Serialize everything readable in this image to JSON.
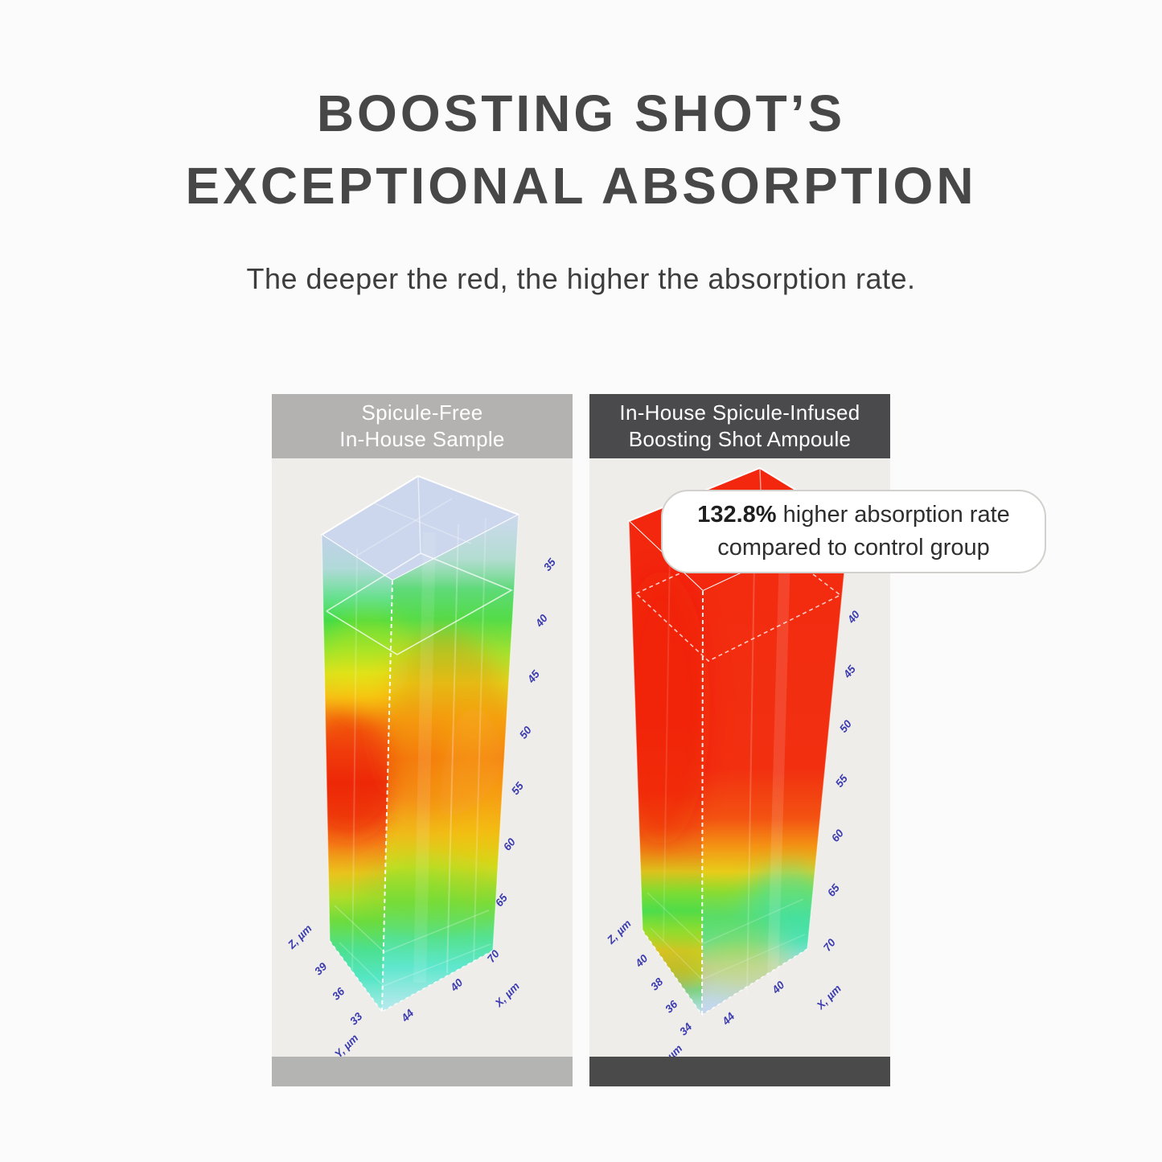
{
  "title": {
    "line1": "BOOSTING SHOT’S",
    "line2": "EXCEPTIONAL ABSORPTION"
  },
  "subtitle": "The deeper the red, the higher the absorption rate.",
  "callout": {
    "value": "132.8%",
    "line1_rest": " higher absorption rate",
    "line2": "compared to control group"
  },
  "colors": {
    "page_bg": "#fbfbfb",
    "title": "#474747",
    "subtitle": "#3d3d3d",
    "header_left_bg": "#b3b2b0",
    "header_right_bg": "#4a4a4c",
    "header_text": "#ffffff",
    "panel_bg": "#efede9",
    "footer_left": "#b4b4b3",
    "footer_right": "#4a4a4a",
    "axis_text": "#3b3bb0",
    "callout_bg": "#ffffff",
    "callout_border": "#d2d0cc",
    "callout_text": "#2e2e2e",
    "edge": "#ffffff"
  },
  "chart_data": [
    {
      "id": "control",
      "type": "heatmap",
      "subtype": "3d-voxel-column",
      "panel_title_lines": [
        "Spicule-Free",
        "In-House Sample"
      ],
      "legend_meaning": "deeper red = higher absorption rate",
      "axes": {
        "x_label": "X, µm",
        "y_label": "Y, µm",
        "z_label": "Z, µm"
      },
      "right_edge_ticks": [
        "35",
        "40",
        "45",
        "50",
        "55",
        "60",
        "65",
        "70"
      ],
      "z_ticks": [
        "39",
        "36",
        "33"
      ],
      "bottom_ticks": [
        "44",
        "40"
      ],
      "gradients": {
        "top_face": "rgba(200,212,237,0.9)",
        "left_face": [
          [
            "0.00",
            "rgba(187,204,234,0.85)"
          ],
          [
            "0.07",
            "rgba(166,214,214,0.85)"
          ],
          [
            "0.13",
            "rgba(96,224,140,0.95)"
          ],
          [
            "0.18",
            "#3edc48"
          ],
          [
            "0.24",
            "#8ce434"
          ],
          [
            "0.29",
            "#d8e220"
          ],
          [
            "0.34",
            "#f6c116"
          ],
          [
            "0.39",
            "#f68e12"
          ],
          [
            "0.45",
            "#f35818"
          ],
          [
            "0.52",
            "#ee2e0e"
          ],
          [
            "0.59",
            "#f04a12"
          ],
          [
            "0.65",
            "#f48016"
          ],
          [
            "0.71",
            "#eac41c"
          ],
          [
            "0.76",
            "#b4dc28"
          ],
          [
            "0.81",
            "#6ddc3e"
          ],
          [
            "0.87",
            "#4ce090"
          ],
          [
            "0.93",
            "#55e6c4"
          ],
          [
            "1.00",
            "rgba(150,235,228,0.8)"
          ]
        ],
        "right_face": [
          [
            "0.00",
            "rgba(198,211,238,0.82)"
          ],
          [
            "0.09",
            "rgba(168,218,205,0.85)"
          ],
          [
            "0.15",
            "#5eda78"
          ],
          [
            "0.21",
            "#54dc48"
          ],
          [
            "0.28",
            "#a6e22e"
          ],
          [
            "0.34",
            "#e2d51c"
          ],
          [
            "0.41",
            "#f6a814"
          ],
          [
            "0.49",
            "#f67e12"
          ],
          [
            "0.57",
            "#f6961a"
          ],
          [
            "0.64",
            "#f0ba18"
          ],
          [
            "0.71",
            "#cede20"
          ],
          [
            "0.78",
            "#7ede3c"
          ],
          [
            "0.85",
            "#54e298"
          ],
          [
            "0.91",
            "#5ee7cc"
          ],
          [
            "1.00",
            "rgba(168,232,238,0.75)"
          ]
        ]
      }
    },
    {
      "id": "treated",
      "type": "heatmap",
      "subtype": "3d-voxel-column",
      "panel_title_lines": [
        "In-House Spicule-Infused",
        "Boosting Shot Ampoule"
      ],
      "legend_meaning": "deeper red = higher absorption rate",
      "annotation": "132.8% higher absorption rate compared to control group",
      "axes": {
        "x_label": "X, µm",
        "y_label": "Y, µm",
        "z_label": "Z, µm"
      },
      "right_edge_ticks": [
        "40",
        "45",
        "50",
        "55",
        "60",
        "65",
        "70"
      ],
      "z_ticks": [
        "40",
        "38",
        "36",
        "34"
      ],
      "bottom_ticks": [
        "44",
        "40"
      ],
      "gradients": {
        "top_face": "#f3260e",
        "left_face": [
          [
            "0.00",
            "#f3260e"
          ],
          [
            "0.40",
            "#f1280e"
          ],
          [
            "0.55",
            "#f1340f"
          ],
          [
            "0.62",
            "#f15211"
          ],
          [
            "0.67",
            "#ee8414"
          ],
          [
            "0.71",
            "#dcc21c"
          ],
          [
            "0.75",
            "#84dc32"
          ],
          [
            "0.79",
            "#48de50"
          ],
          [
            "0.83",
            "#a2e02c"
          ],
          [
            "0.87",
            "#e6ca1e"
          ],
          [
            "0.91",
            "#9cdc3a"
          ],
          [
            "0.95",
            "#62dfa2"
          ],
          [
            "1.00",
            "rgba(188,218,242,0.8)"
          ]
        ],
        "right_face": [
          [
            "0.00",
            "#f32a0f"
          ],
          [
            "0.50",
            "#f23010"
          ],
          [
            "0.60",
            "#f35212"
          ],
          [
            "0.66",
            "#f49614"
          ],
          [
            "0.71",
            "#e8cd1a"
          ],
          [
            "0.75",
            "#90dc30"
          ],
          [
            "0.80",
            "#52e080"
          ],
          [
            "0.85",
            "#58e4b6"
          ],
          [
            "0.90",
            "rgba(140,220,235,0.8)"
          ],
          [
            "1.00",
            "rgba(185,206,242,0.72)"
          ]
        ]
      }
    }
  ]
}
